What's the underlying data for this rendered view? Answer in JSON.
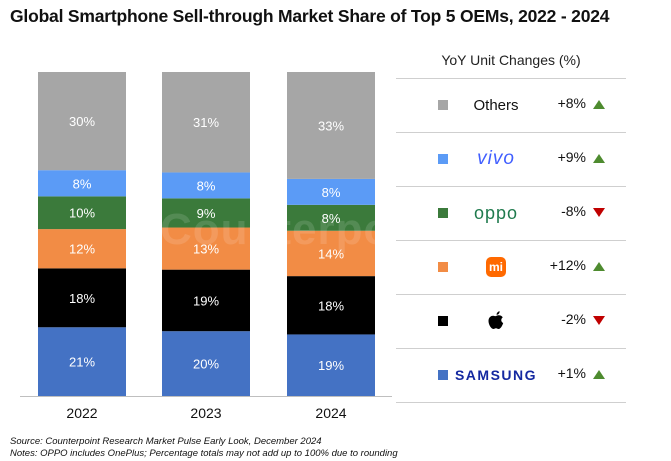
{
  "title": "Global Smartphone Sell-through Market Share of Top 5 OEMs, 2022 - 2024",
  "watermark": "Counterpoint",
  "chart_data": {
    "type": "bar",
    "stacked": true,
    "categories": [
      "2022",
      "2023",
      "2024"
    ],
    "ylim": [
      0,
      100
    ],
    "grid": false,
    "series": [
      {
        "name": "Samsung",
        "values": [
          21,
          20,
          19
        ],
        "labels": [
          "21%",
          "20%",
          "19%"
        ],
        "color": "#4472C4",
        "label_color": "#ffffff"
      },
      {
        "name": "Apple",
        "values": [
          18,
          19,
          18
        ],
        "labels": [
          "18%",
          "19%",
          "18%"
        ],
        "color": "#000000",
        "label_color": "#ffffff"
      },
      {
        "name": "Xiaomi",
        "values": [
          12,
          13,
          14
        ],
        "labels": [
          "12%",
          "13%",
          "14%"
        ],
        "color": "#F28C45",
        "label_color": "#ffffff"
      },
      {
        "name": "OPPO",
        "values": [
          10,
          9,
          8
        ],
        "labels": [
          "10%",
          "9%",
          "8%"
        ],
        "color": "#3B7A3B",
        "label_color": "#ffffff"
      },
      {
        "name": "vivo",
        "values": [
          8,
          8,
          8
        ],
        "labels": [
          "8%",
          "8%",
          "8%"
        ],
        "color": "#5B9BF6",
        "label_color": "#ffffff"
      },
      {
        "name": "Others",
        "values": [
          30,
          31,
          33
        ],
        "labels": [
          "30%",
          "31%",
          "33%"
        ],
        "color": "#A6A6A6",
        "label_color": "#ffffff"
      }
    ]
  },
  "legend": {
    "header": "YoY Unit Changes (%)",
    "items": [
      {
        "brand": "Others",
        "brand_icon": "text",
        "change": "+8%",
        "direction": "up",
        "color": "#A6A6A6"
      },
      {
        "brand": "vivo",
        "brand_icon": "vivo-logo",
        "change": "+9%",
        "direction": "up",
        "color": "#5B9BF6"
      },
      {
        "brand": "oppo",
        "brand_icon": "oppo-logo",
        "change": "-8%",
        "direction": "down",
        "color": "#3B7A3B"
      },
      {
        "brand": "mi",
        "brand_icon": "xiaomi-logo",
        "change": "+12%",
        "direction": "up",
        "color": "#F28C45"
      },
      {
        "brand": "",
        "brand_icon": "apple-logo",
        "change": "-2%",
        "direction": "down",
        "color": "#000000"
      },
      {
        "brand": "SAMSUNG",
        "brand_icon": "samsung-logo",
        "change": "+1%",
        "direction": "up",
        "color": "#1428A0"
      }
    ],
    "up_color": "#4E8B2F",
    "down_color": "#C00000"
  },
  "footnotes": {
    "source": "Source: Counterpoint Research Market Pulse Early Look, December 2024",
    "notes": "Notes: OPPO includes OnePlus; Percentage totals may not add up to 100% due to rounding"
  }
}
